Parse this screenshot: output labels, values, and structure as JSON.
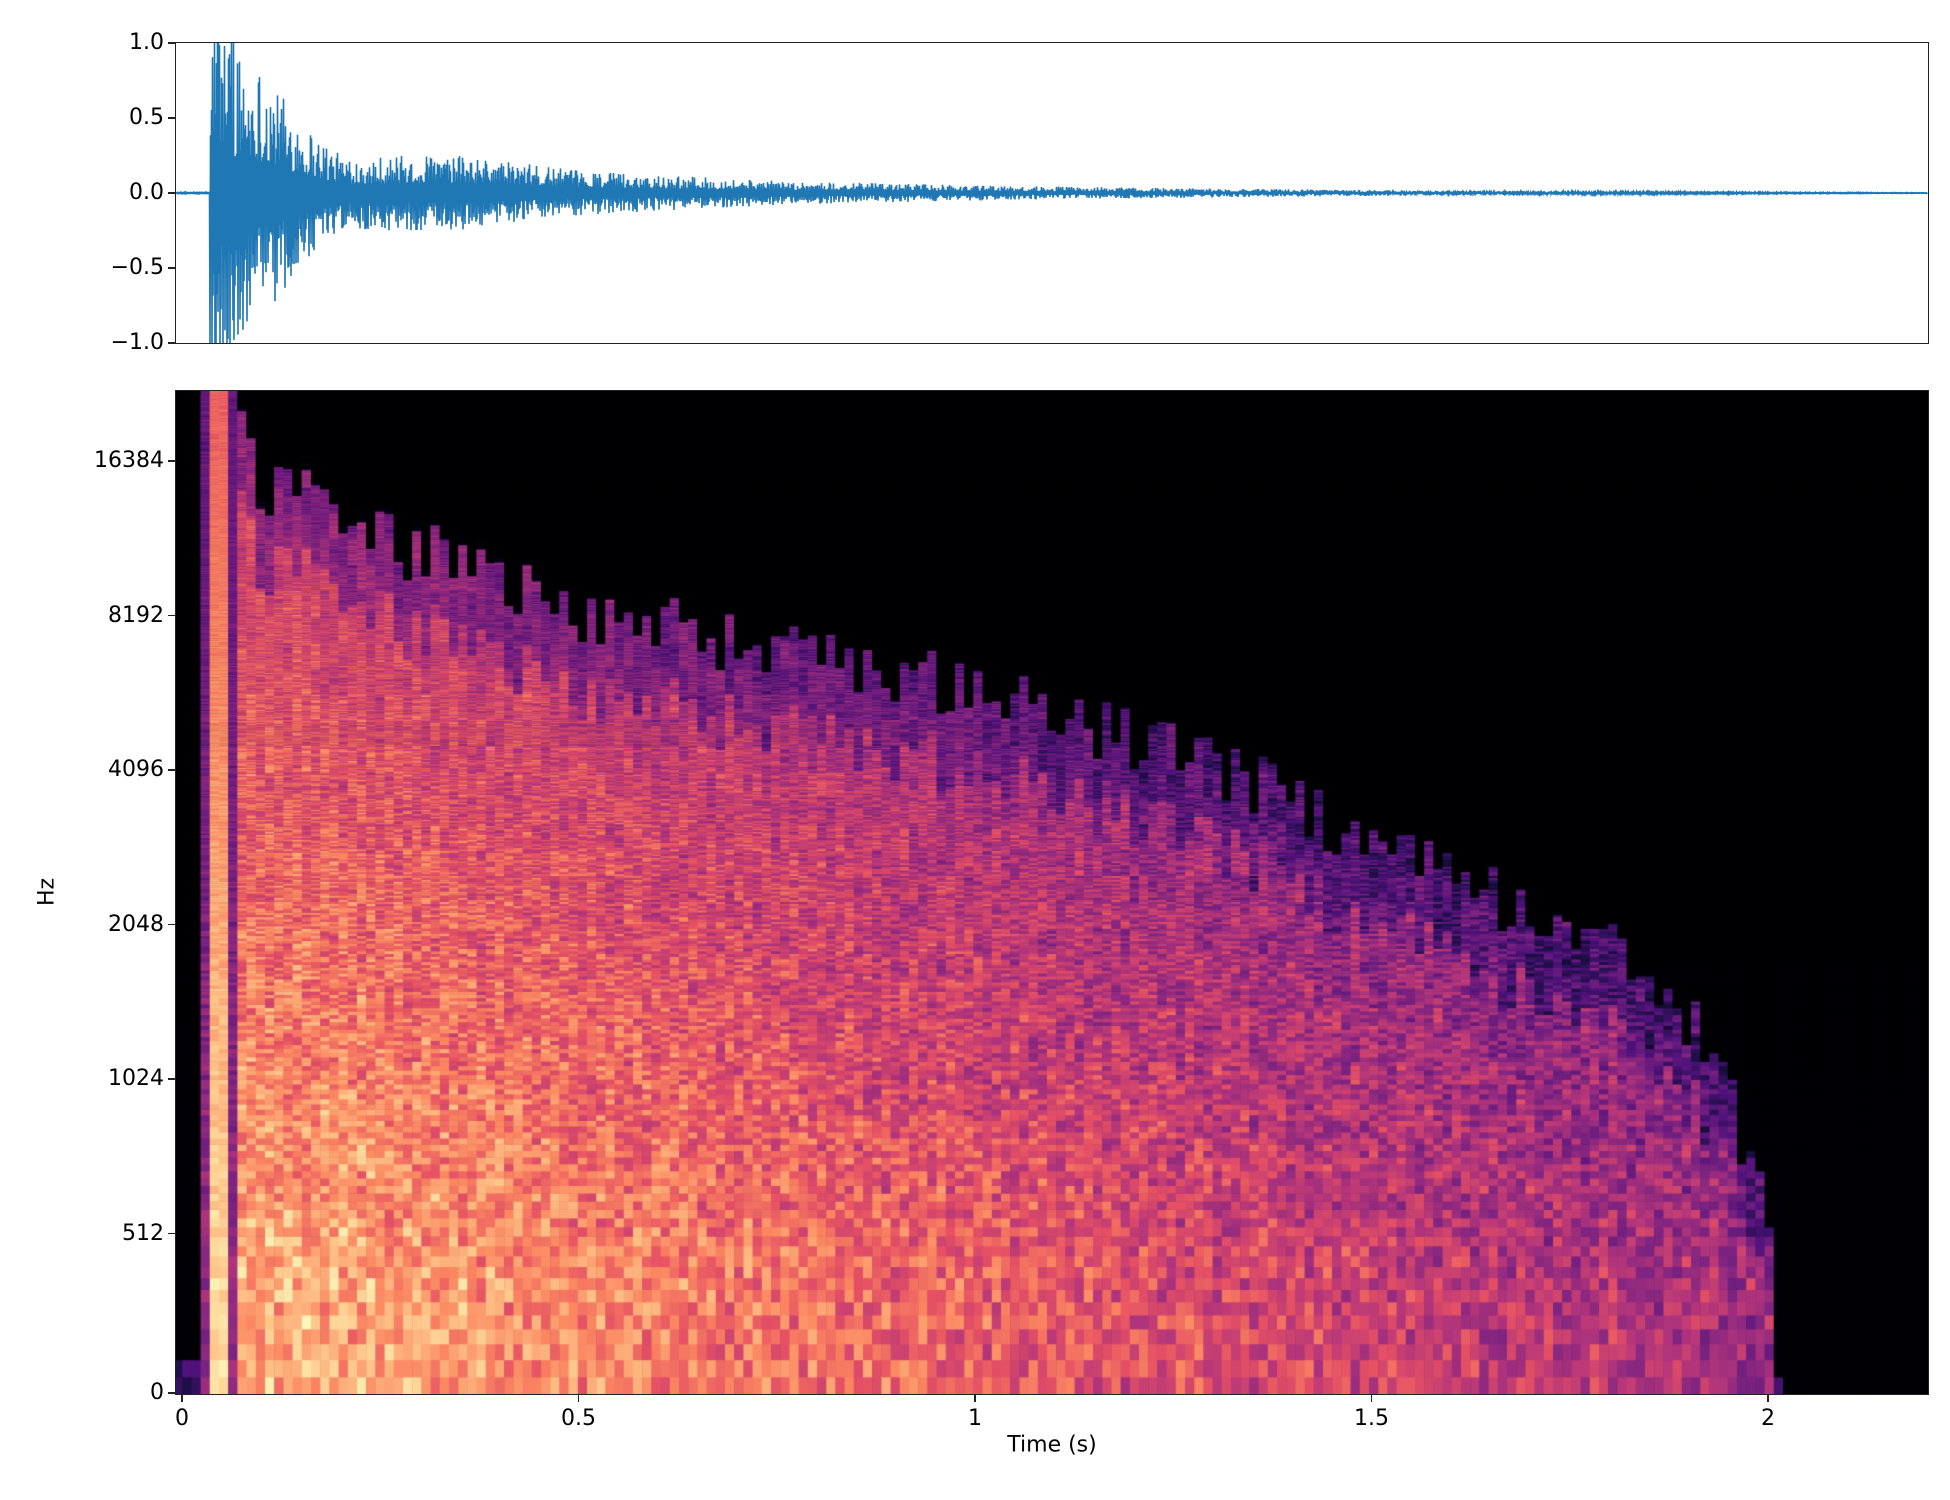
{
  "chart_data": [
    {
      "type": "line",
      "panel": "waveform",
      "xlim": [
        0,
        2.2
      ],
      "ylim": [
        -1.0,
        1.0
      ],
      "yticks": [
        1.0,
        0.5,
        0.0,
        -0.5,
        -1.0
      ],
      "ytick_labels": [
        "1.0",
        "0.5",
        "0.0",
        "−0.5",
        "−1.0"
      ],
      "grid": false,
      "color": "#1f77b4",
      "amplitude_envelope": {
        "t": [
          0.0,
          0.04,
          0.06,
          0.1,
          0.15,
          0.2,
          0.35,
          0.5,
          0.75,
          1.0,
          1.3,
          1.6,
          2.0,
          2.2
        ],
        "peak": [
          0.0,
          1.0,
          1.0,
          0.85,
          0.5,
          0.25,
          0.25,
          0.15,
          0.08,
          0.05,
          0.03,
          0.015,
          0.005,
          0.002
        ]
      }
    },
    {
      "type": "heatmap",
      "panel": "spectrogram",
      "colormap": "magma",
      "xlabel": "Time (s)",
      "ylabel": "Hz",
      "xlim": [
        0,
        2.2
      ],
      "ylim": [
        0,
        22050
      ],
      "y_scale": "log",
      "xticks": [
        0,
        0.5,
        1,
        1.5,
        2
      ],
      "xtick_labels": [
        "0",
        "0.5",
        "1",
        "1.5",
        "2"
      ],
      "yticks": [
        0,
        512,
        1024,
        2048,
        4096,
        8192,
        16384
      ],
      "ytick_labels": [
        "0",
        "512",
        "1024",
        "2048",
        "4096",
        "8192",
        "16384"
      ],
      "grid": false,
      "energy_cutoff_hz": {
        "t": [
          0.03,
          0.07,
          0.1,
          0.3,
          0.5,
          0.75,
          1.0,
          1.25,
          1.5,
          1.7,
          1.85,
          1.95,
          2.0,
          2.03
        ],
        "f": [
          22050,
          22050,
          15000,
          11000,
          8500,
          7000,
          6000,
          4500,
          3000,
          2200,
          1700,
          1000,
          600,
          100
        ]
      }
    }
  ]
}
